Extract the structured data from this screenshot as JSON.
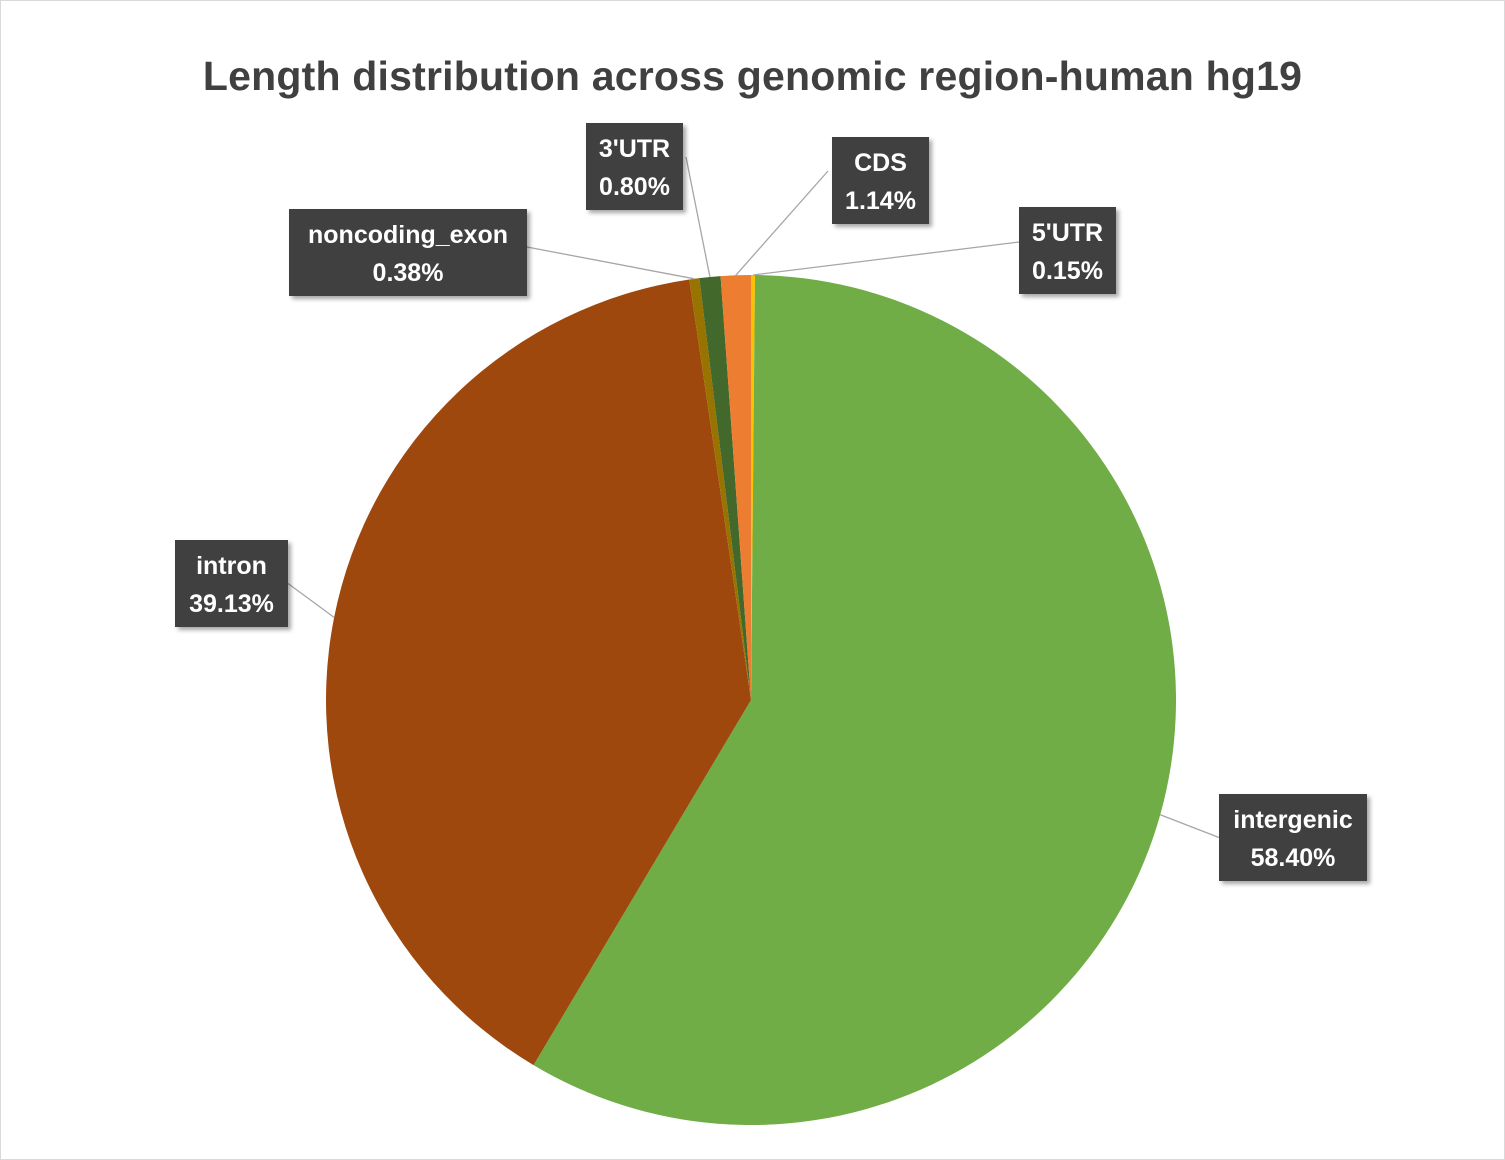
{
  "chart_data": {
    "type": "pie",
    "title": "Length distribution across genomic region-human hg19",
    "slices": [
      {
        "label": "5'UTR",
        "value": 0.15,
        "value_label": "0.15%",
        "color": "#ffc000"
      },
      {
        "label": "intergenic",
        "value": 58.4,
        "value_label": "58.40%",
        "color": "#70ad47"
      },
      {
        "label": "intron",
        "value": 39.13,
        "value_label": "39.13%",
        "color": "#9e480e"
      },
      {
        "label": "noncoding_exon",
        "value": 0.38,
        "value_label": "0.38%",
        "color": "#997300"
      },
      {
        "label": "3'UTR",
        "value": 0.8,
        "value_label": "0.80%",
        "color": "#43682b"
      },
      {
        "label": "CDS",
        "value": 1.14,
        "value_label": "1.14%",
        "color": "#ed7d31"
      }
    ],
    "label_style": {
      "background": "#404040",
      "text_color": "#ffffff"
    }
  }
}
